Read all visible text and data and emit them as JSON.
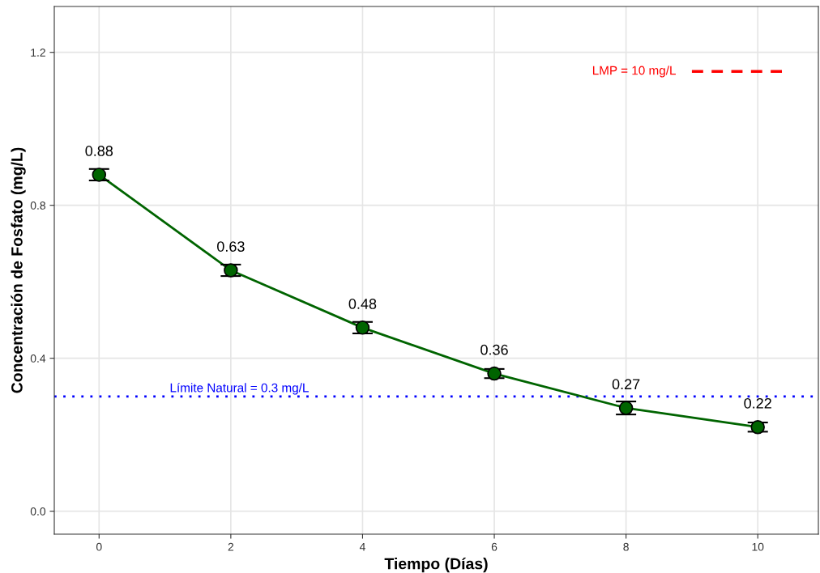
{
  "chart_data": {
    "type": "line",
    "xlabel": "Tiempo (Días)",
    "ylabel": "Concentración de Fosfato (mg/L)",
    "x": [
      0,
      2,
      4,
      6,
      8,
      10
    ],
    "series": [
      {
        "color": "#006400",
        "values": [
          0.88,
          0.63,
          0.48,
          0.36,
          0.27,
          0.22
        ],
        "errors": [
          0.015,
          0.015,
          0.015,
          0.012,
          0.017,
          0.012
        ],
        "value_labels": [
          "0.88",
          "0.63",
          "0.48",
          "0.36",
          "0.27",
          "0.22"
        ],
        "marker": "circle",
        "line_style": "solid"
      },
      {
        "type": "line",
        "name": "LMP = 10 mg/L",
        "color": "#ff0000",
        "x": [
          9,
          10.4
        ],
        "values": [
          1.15,
          1.15
        ],
        "line_style": "dashed",
        "marker": "none"
      }
    ],
    "ref_lines": [
      {
        "axis": "y",
        "value": 0.3,
        "label": "Límite Natural = 0.3 mg/L",
        "color": "#0000ff",
        "line_style": "dotted"
      }
    ],
    "xlim": [
      -0.68,
      10.92
    ],
    "xticks": [
      0,
      2,
      4,
      6,
      8,
      10
    ],
    "ylim": [
      -0.06,
      1.32
    ],
    "yticks": [
      {
        "value": 0,
        "label": "0.0"
      },
      {
        "value": 0.4,
        "label": "0.4"
      },
      {
        "value": 0.8,
        "label": "0.8"
      },
      {
        "value": 1.2,
        "label": "1.2"
      }
    ],
    "grid": true,
    "legend": false
  }
}
